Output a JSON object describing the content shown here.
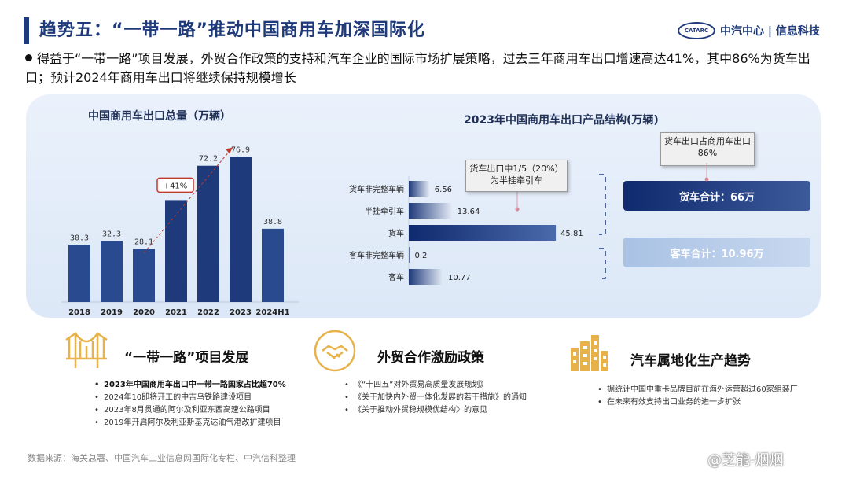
{
  "title": "趋势五：“一带一路”推动中国商用车加深国际化",
  "logo": {
    "emblem": "CATARC",
    "text": "中汽中心 | 信息科技"
  },
  "summary": "得益于“一带一路”项目发展，外贸合作政策的支持和汽车企业的国际市场扩展策略，过去三年商用车出口增速高达41%，其中86%为货车出口；预计2024年商用车出口将继续保持规模增长",
  "colors": {
    "primary": "#1f3a7a",
    "bar_light": "#c7d4ea",
    "panel": "#e2ebf8",
    "accent": "#c0392b",
    "gold": "#e8b24a"
  },
  "chart_data": [
    {
      "type": "bar",
      "title": "中国商用车出口总量（万辆）",
      "categories": [
        "2018",
        "2019",
        "2020",
        "2021",
        "2022",
        "2023",
        "2024H1"
      ],
      "values": [
        30.3,
        32.3,
        28.1,
        54,
        72.2,
        76.9,
        38.8
      ],
      "labels": [
        "30.3",
        "32.3",
        "28.1",
        "",
        "72.2",
        "76.9",
        "38.8"
      ],
      "annotation": "+41%",
      "ylim": [
        0,
        85
      ]
    },
    {
      "type": "bar",
      "orientation": "horizontal",
      "title": "2023年中国商用车出口产品结构(万辆)",
      "categories": [
        "货车非完整车辆",
        "半挂牵引车",
        "货车",
        "客车非完整车辆",
        "客车"
      ],
      "values": [
        6.56,
        13.64,
        45.81,
        0.2,
        10.77
      ],
      "labels": [
        "6.56",
        "13.64",
        "45.81",
        "0.2",
        "10.77"
      ],
      "xlim": [
        0,
        48
      ],
      "callouts": [
        "货车出口中1/5（20%）为半挂牵引车",
        "货车出口占商用车出口86%"
      ],
      "totals": {
        "truck": "货车合计：66万",
        "bus": "客车合计：10.96万"
      }
    }
  ],
  "sections": [
    {
      "icon": "bridge-icon",
      "title": "“一带一路”项目发展",
      "bullets": [
        {
          "text": "2023年中国商用车出口中一带一路国家占比超70%",
          "bold": true
        },
        {
          "text": "2024年10即将开工的中吉乌铁路建设项目",
          "bold": false
        },
        {
          "text": "2023年8月贯通的阿尔及利亚东西高速公路项目",
          "bold": false
        },
        {
          "text": "2019年开启阿尔及利亚斯基克达油气港改扩建项目",
          "bold": false
        }
      ]
    },
    {
      "icon": "handshake-icon",
      "title": "外贸合作激励政策",
      "bullets": [
        {
          "text": "《“十四五”对外贸易高质量发展规划》",
          "bold": false
        },
        {
          "text": "《关于加快内外贸一体化发展的若干措施》的通知",
          "bold": false
        },
        {
          "text": "《关于推动外贸稳规模优结构》的意见",
          "bold": false
        }
      ]
    },
    {
      "icon": "factory-icon",
      "title": "汽车属地化生产趋势",
      "bullets": [
        {
          "text": "据统计中国中重卡品牌目前在海外运营超过60家组装厂",
          "bold": false
        },
        {
          "text": "在未来有效支持出口业务的进一步扩张",
          "bold": false
        }
      ]
    }
  ],
  "source": "数据来源：海关总署、中国汽车工业信息网国际化专栏、中汽信科整理",
  "watermark": "@芝能-烟烟"
}
